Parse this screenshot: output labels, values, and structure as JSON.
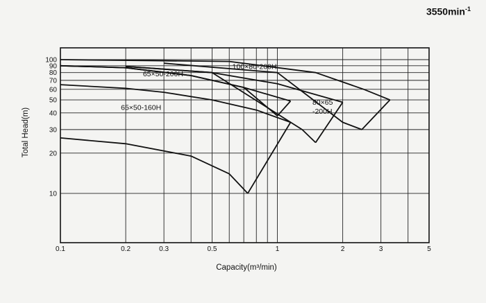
{
  "speed_label": "3550min",
  "speed_label_sup": "-1",
  "chart_data": {
    "type": "line",
    "xlabel": "Capacity(m³/min)",
    "ylabel": "Total Head(m)",
    "x_scale": "log",
    "y_scale": "log",
    "xlim": [
      0.1,
      5
    ],
    "ylim": [
      5,
      100
    ],
    "grid": true,
    "x_ticks": [
      0.1,
      0.2,
      0.3,
      0.5,
      1,
      2,
      3,
      5
    ],
    "x_tick_labels": [
      "0.1",
      "0.2",
      "0.3",
      "0.5",
      "1",
      "2",
      "3",
      "5"
    ],
    "x_gridlines": [
      0.1,
      0.2,
      0.3,
      0.4,
      0.5,
      0.6,
      0.7,
      0.8,
      0.9,
      1,
      2,
      3,
      4,
      5
    ],
    "y_ticks": [
      10,
      20,
      30,
      40,
      50,
      60,
      70,
      80,
      90,
      100
    ],
    "y_tick_labels": [
      "10",
      "20",
      "30",
      "40",
      "50",
      "60",
      "70",
      "80",
      "90",
      "100"
    ],
    "series": [
      {
        "name": "65×50-160H",
        "label_lines": [
          "65×50-160H"
        ],
        "label_anchor": [
          0.19,
          42
        ],
        "points": [
          [
            0.1,
            65
          ],
          [
            0.2,
            61
          ],
          [
            0.3,
            57
          ],
          [
            0.5,
            50
          ],
          [
            0.8,
            42
          ],
          [
            1.15,
            34
          ]
        ],
        "lower_points": [
          [
            0.1,
            26
          ],
          [
            0.2,
            23.5
          ],
          [
            0.4,
            19
          ],
          [
            0.6,
            14
          ],
          [
            0.73,
            10
          ]
        ]
      },
      {
        "name": "65×50-200H",
        "label_lines": [
          "65×50-200H"
        ],
        "label_anchor": [
          0.24,
          75
        ],
        "points": [
          [
            0.1,
            90
          ],
          [
            0.2,
            87
          ],
          [
            0.4,
            76
          ],
          [
            0.7,
            62
          ],
          [
            1.15,
            49
          ]
        ],
        "lower_points": [
          [
            0.1,
            90
          ],
          [
            0.2,
            87
          ],
          [
            0.4,
            76
          ],
          [
            0.7,
            62
          ],
          [
            1.0,
            38
          ]
        ]
      },
      {
        "name": "80×65-200H",
        "label_lines": [
          "80×65",
          "-200H"
        ],
        "label_anchor": [
          1.45,
          46
        ],
        "points": [
          [
            0.2,
            89
          ],
          [
            0.5,
            80
          ],
          [
            1.0,
            66
          ],
          [
            2.0,
            48
          ]
        ],
        "lower_points": [
          [
            0.2,
            89
          ],
          [
            0.5,
            80
          ],
          [
            1.3,
            30
          ],
          [
            1.5,
            24
          ]
        ]
      },
      {
        "name": "100×80-200H",
        "label_lines": [
          "100×80-200H"
        ],
        "label_anchor": [
          0.62,
          85
        ],
        "points": [
          [
            0.1,
            100
          ],
          [
            0.6,
            97
          ],
          [
            1.5,
            80
          ],
          [
            2.5,
            60
          ],
          [
            3.3,
            50
          ]
        ],
        "lower_points": [
          [
            0.3,
            94
          ],
          [
            1.0,
            80
          ],
          [
            2.0,
            34
          ],
          [
            2.45,
            30
          ]
        ]
      }
    ]
  }
}
